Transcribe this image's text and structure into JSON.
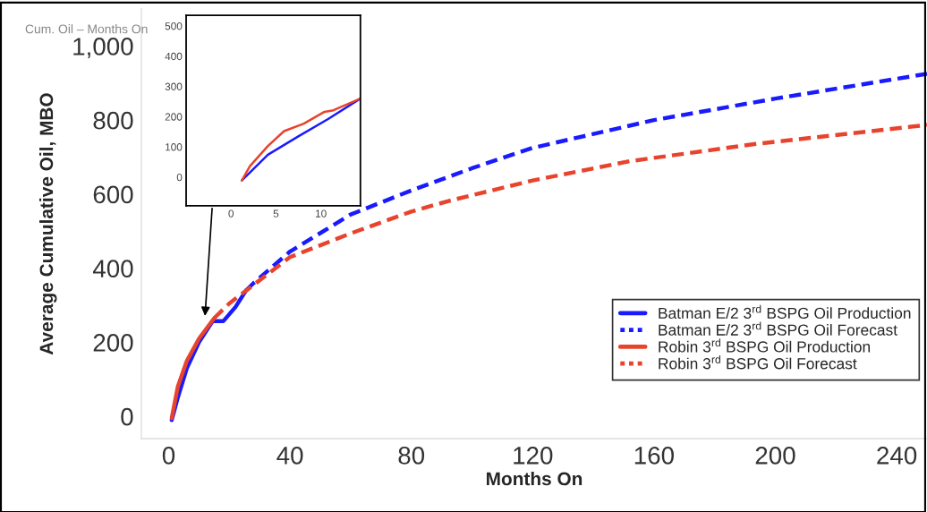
{
  "chart_data": [
    {
      "type": "line",
      "title": "Cum. Oil – Months On",
      "xlabel": "Months On",
      "ylabel": "Average Cumulative Oil, MBO",
      "xlim": [
        -9,
        250
      ],
      "ylim": [
        -60,
        1100
      ],
      "xticks": [
        0,
        40,
        80,
        120,
        160,
        200,
        240
      ],
      "yticks": [
        0,
        200,
        400,
        600,
        800,
        {
          "value": 1000,
          "label": "1,000"
        }
      ],
      "grid": false,
      "legend": "right",
      "line_style": "solid",
      "series": [
        {
          "name": "Batman E/2 3$^{rd}$ BSPG Oil Production",
          "color": "#1a1aff",
          "x": [
            1,
            3,
            6,
            10,
            14.5,
            18,
            22,
            25.5
          ],
          "values": [
            -10,
            50,
            130,
            200,
            257,
            257,
            295,
            340
          ]
        },
        {
          "name": "Batman E/2 3$^{rd}$ BSPG Oil Forecast",
          "color": "#1a1aff",
          "line_style": "dashed",
          "x": [
            25.5,
            28,
            40,
            60,
            80,
            100,
            120,
            160,
            200,
            250
          ],
          "values": [
            340,
            360,
            445,
            545,
            610,
            670,
            725,
            800,
            858,
            925
          ]
        },
        {
          "name": "Robin 3$^{rd}$ BSPG Oil Production",
          "color": "#e8432d",
          "x": [
            1,
            3,
            6,
            10,
            15
          ],
          "values": [
            -5,
            80,
            150,
            210,
            265
          ]
        },
        {
          "name": "Robin 3$^{rd}$ BSPG Oil Forecast",
          "color": "#e8432d",
          "line_style": "dashed",
          "x": [
            15,
            20,
            28,
            40,
            60,
            80,
            92,
            120,
            152,
            193,
            250
          ],
          "values": [
            265,
            305,
            355,
            430,
            494,
            553,
            581,
            637,
            689,
            735,
            787
          ]
        }
      ]
    },
    {
      "type": "line",
      "xlim": [
        -5,
        14.4
      ],
      "ylim": [
        -95,
        535
      ],
      "xticks": [
        0,
        5,
        10
      ],
      "yticks": [
        0,
        100,
        200,
        300,
        400,
        500
      ],
      "grid": false,
      "legend": false,
      "series": [
        {
          "color": "#1a1aff",
          "x": [
            1.2,
            4.1,
            7.4,
            10.8,
            14.4
          ],
          "values": [
            -11,
            74,
            133,
            192,
            260
          ]
        },
        {
          "color": "#e8432d",
          "x": [
            1.2,
            2.1,
            4.1,
            5.9,
            8.1,
            10.4,
            11.4,
            14.4
          ],
          "values": [
            -11,
            36,
            103,
            152,
            177,
            216,
            221,
            260
          ]
        }
      ]
    }
  ]
}
